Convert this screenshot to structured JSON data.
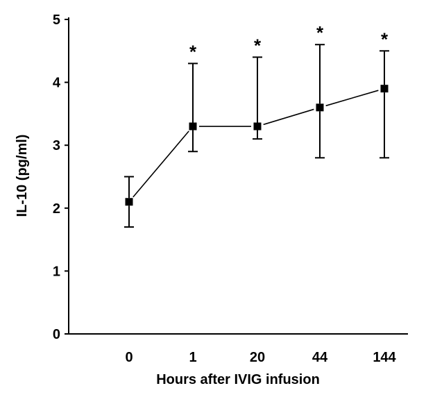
{
  "chart_data": {
    "type": "line",
    "title": "",
    "xlabel": "Hours after IVIG infusion",
    "ylabel": "IL-10 (pg/ml)",
    "categories": [
      "0",
      "1",
      "20",
      "44",
      "144"
    ],
    "ylim": [
      0,
      5
    ],
    "yticks": [
      "0",
      "1",
      "2",
      "3",
      "4",
      "5"
    ],
    "grid": false,
    "legend": "none",
    "series": [
      {
        "values": [
          2.1,
          3.3,
          3.3,
          3.6,
          3.9
        ],
        "error_low": [
          1.7,
          2.9,
          3.1,
          2.8,
          2.8
        ],
        "error_high": [
          2.5,
          4.3,
          4.4,
          4.6,
          4.5
        ],
        "marker": "square",
        "color": "#000000"
      }
    ],
    "annotations": [
      {
        "category": "1",
        "text": "*"
      },
      {
        "category": "20",
        "text": "*"
      },
      {
        "category": "44",
        "text": "*"
      },
      {
        "category": "144",
        "text": "*"
      }
    ]
  }
}
